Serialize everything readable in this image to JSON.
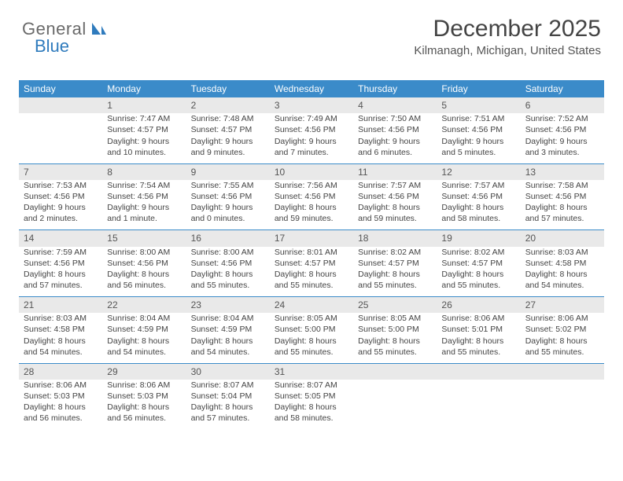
{
  "brand": {
    "part1": "General",
    "part2": "Blue"
  },
  "title": "December 2025",
  "location": "Kilmanagh, Michigan, United States",
  "styling": {
    "header_bg": "#3b8bc9",
    "header_text": "#ffffff",
    "daynum_bg": "#e9e9e9",
    "daynum_text": "#555555",
    "body_text": "#444444",
    "row_border": "#3b8bc9",
    "page_bg": "#ffffff",
    "title_fontsize": 30,
    "location_fontsize": 15,
    "cell_fontsize": 10.5,
    "header_fontsize": 12
  },
  "weekdays": [
    "Sunday",
    "Monday",
    "Tuesday",
    "Wednesday",
    "Thursday",
    "Friday",
    "Saturday"
  ],
  "weeks": [
    [
      {
        "day": "",
        "sunrise": "",
        "sunset": "",
        "daylight": ""
      },
      {
        "day": "1",
        "sunrise": "Sunrise: 7:47 AM",
        "sunset": "Sunset: 4:57 PM",
        "daylight": "Daylight: 9 hours and 10 minutes."
      },
      {
        "day": "2",
        "sunrise": "Sunrise: 7:48 AM",
        "sunset": "Sunset: 4:57 PM",
        "daylight": "Daylight: 9 hours and 9 minutes."
      },
      {
        "day": "3",
        "sunrise": "Sunrise: 7:49 AM",
        "sunset": "Sunset: 4:56 PM",
        "daylight": "Daylight: 9 hours and 7 minutes."
      },
      {
        "day": "4",
        "sunrise": "Sunrise: 7:50 AM",
        "sunset": "Sunset: 4:56 PM",
        "daylight": "Daylight: 9 hours and 6 minutes."
      },
      {
        "day": "5",
        "sunrise": "Sunrise: 7:51 AM",
        "sunset": "Sunset: 4:56 PM",
        "daylight": "Daylight: 9 hours and 5 minutes."
      },
      {
        "day": "6",
        "sunrise": "Sunrise: 7:52 AM",
        "sunset": "Sunset: 4:56 PM",
        "daylight": "Daylight: 9 hours and 3 minutes."
      }
    ],
    [
      {
        "day": "7",
        "sunrise": "Sunrise: 7:53 AM",
        "sunset": "Sunset: 4:56 PM",
        "daylight": "Daylight: 9 hours and 2 minutes."
      },
      {
        "day": "8",
        "sunrise": "Sunrise: 7:54 AM",
        "sunset": "Sunset: 4:56 PM",
        "daylight": "Daylight: 9 hours and 1 minute."
      },
      {
        "day": "9",
        "sunrise": "Sunrise: 7:55 AM",
        "sunset": "Sunset: 4:56 PM",
        "daylight": "Daylight: 9 hours and 0 minutes."
      },
      {
        "day": "10",
        "sunrise": "Sunrise: 7:56 AM",
        "sunset": "Sunset: 4:56 PM",
        "daylight": "Daylight: 8 hours and 59 minutes."
      },
      {
        "day": "11",
        "sunrise": "Sunrise: 7:57 AM",
        "sunset": "Sunset: 4:56 PM",
        "daylight": "Daylight: 8 hours and 59 minutes."
      },
      {
        "day": "12",
        "sunrise": "Sunrise: 7:57 AM",
        "sunset": "Sunset: 4:56 PM",
        "daylight": "Daylight: 8 hours and 58 minutes."
      },
      {
        "day": "13",
        "sunrise": "Sunrise: 7:58 AM",
        "sunset": "Sunset: 4:56 PM",
        "daylight": "Daylight: 8 hours and 57 minutes."
      }
    ],
    [
      {
        "day": "14",
        "sunrise": "Sunrise: 7:59 AM",
        "sunset": "Sunset: 4:56 PM",
        "daylight": "Daylight: 8 hours and 57 minutes."
      },
      {
        "day": "15",
        "sunrise": "Sunrise: 8:00 AM",
        "sunset": "Sunset: 4:56 PM",
        "daylight": "Daylight: 8 hours and 56 minutes."
      },
      {
        "day": "16",
        "sunrise": "Sunrise: 8:00 AM",
        "sunset": "Sunset: 4:56 PM",
        "daylight": "Daylight: 8 hours and 55 minutes."
      },
      {
        "day": "17",
        "sunrise": "Sunrise: 8:01 AM",
        "sunset": "Sunset: 4:57 PM",
        "daylight": "Daylight: 8 hours and 55 minutes."
      },
      {
        "day": "18",
        "sunrise": "Sunrise: 8:02 AM",
        "sunset": "Sunset: 4:57 PM",
        "daylight": "Daylight: 8 hours and 55 minutes."
      },
      {
        "day": "19",
        "sunrise": "Sunrise: 8:02 AM",
        "sunset": "Sunset: 4:57 PM",
        "daylight": "Daylight: 8 hours and 55 minutes."
      },
      {
        "day": "20",
        "sunrise": "Sunrise: 8:03 AM",
        "sunset": "Sunset: 4:58 PM",
        "daylight": "Daylight: 8 hours and 54 minutes."
      }
    ],
    [
      {
        "day": "21",
        "sunrise": "Sunrise: 8:03 AM",
        "sunset": "Sunset: 4:58 PM",
        "daylight": "Daylight: 8 hours and 54 minutes."
      },
      {
        "day": "22",
        "sunrise": "Sunrise: 8:04 AM",
        "sunset": "Sunset: 4:59 PM",
        "daylight": "Daylight: 8 hours and 54 minutes."
      },
      {
        "day": "23",
        "sunrise": "Sunrise: 8:04 AM",
        "sunset": "Sunset: 4:59 PM",
        "daylight": "Daylight: 8 hours and 54 minutes."
      },
      {
        "day": "24",
        "sunrise": "Sunrise: 8:05 AM",
        "sunset": "Sunset: 5:00 PM",
        "daylight": "Daylight: 8 hours and 55 minutes."
      },
      {
        "day": "25",
        "sunrise": "Sunrise: 8:05 AM",
        "sunset": "Sunset: 5:00 PM",
        "daylight": "Daylight: 8 hours and 55 minutes."
      },
      {
        "day": "26",
        "sunrise": "Sunrise: 8:06 AM",
        "sunset": "Sunset: 5:01 PM",
        "daylight": "Daylight: 8 hours and 55 minutes."
      },
      {
        "day": "27",
        "sunrise": "Sunrise: 8:06 AM",
        "sunset": "Sunset: 5:02 PM",
        "daylight": "Daylight: 8 hours and 55 minutes."
      }
    ],
    [
      {
        "day": "28",
        "sunrise": "Sunrise: 8:06 AM",
        "sunset": "Sunset: 5:03 PM",
        "daylight": "Daylight: 8 hours and 56 minutes."
      },
      {
        "day": "29",
        "sunrise": "Sunrise: 8:06 AM",
        "sunset": "Sunset: 5:03 PM",
        "daylight": "Daylight: 8 hours and 56 minutes."
      },
      {
        "day": "30",
        "sunrise": "Sunrise: 8:07 AM",
        "sunset": "Sunset: 5:04 PM",
        "daylight": "Daylight: 8 hours and 57 minutes."
      },
      {
        "day": "31",
        "sunrise": "Sunrise: 8:07 AM",
        "sunset": "Sunset: 5:05 PM",
        "daylight": "Daylight: 8 hours and 58 minutes."
      },
      {
        "day": "",
        "sunrise": "",
        "sunset": "",
        "daylight": ""
      },
      {
        "day": "",
        "sunrise": "",
        "sunset": "",
        "daylight": ""
      },
      {
        "day": "",
        "sunrise": "",
        "sunset": "",
        "daylight": ""
      }
    ]
  ]
}
